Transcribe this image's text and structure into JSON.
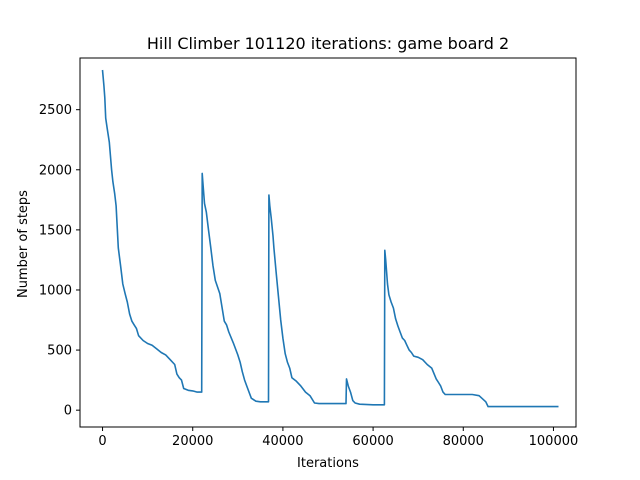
{
  "chart_data": {
    "type": "line",
    "title": "Hill Climber 101120 iterations: game board 2",
    "xlabel": "Iterations",
    "ylabel": "Number of steps",
    "xlim": [
      -5000,
      105000
    ],
    "ylim": [
      -140,
      2930
    ],
    "xticks": [
      0,
      20000,
      40000,
      60000,
      80000,
      100000
    ],
    "xtick_labels": [
      "0",
      "20000",
      "40000",
      "60000",
      "80000",
      "100000"
    ],
    "yticks": [
      0,
      500,
      1000,
      1500,
      2000,
      2500
    ],
    "ytick_labels": [
      "0",
      "500",
      "1000",
      "1500",
      "2000",
      "2500"
    ],
    "grid": false,
    "line_color": "#1f77b4",
    "series": [
      {
        "x": [
          0,
          300,
          500,
          700,
          1000,
          1500,
          2000,
          2300,
          2700,
          3000,
          3500,
          4000,
          4500,
          5000,
          5500,
          6000,
          6500,
          7000,
          7500,
          8000,
          9000,
          10000,
          11000,
          12000,
          13000,
          14000,
          15000,
          16000,
          16500,
          17000,
          17500,
          18000,
          19000,
          20000,
          21000,
          22000,
          22100,
          22300,
          22600,
          23000,
          23500,
          24000,
          24500,
          25000,
          26000,
          27000,
          27500,
          28000,
          29000,
          30000,
          30500,
          31000,
          31500,
          32000,
          33000,
          34000,
          35000,
          36000,
          36800,
          36900,
          37100,
          37400,
          37800,
          38000,
          38500,
          39000,
          39500,
          40000,
          40500,
          41000,
          41500,
          42000,
          43000,
          44000,
          45000,
          46000,
          47000,
          48000,
          50000,
          52000,
          54000,
          54100,
          54500,
          55000,
          55500,
          56000,
          57000,
          60000,
          62500,
          62600,
          62800,
          63000,
          63200,
          63500,
          64000,
          64500,
          65000,
          65500,
          66000,
          66500,
          67000,
          67500,
          68000,
          68500,
          69000,
          70000,
          71000,
          72000,
          73000,
          74000,
          74500,
          75000,
          75500,
          76000,
          78000,
          80000,
          82000,
          83500,
          85000,
          85500,
          87000,
          90000,
          95000,
          100000,
          101120
        ],
        "values": [
          2830,
          2700,
          2600,
          2430,
          2350,
          2230,
          2000,
          1900,
          1800,
          1700,
          1350,
          1200,
          1050,
          970,
          900,
          800,
          740,
          710,
          680,
          620,
          580,
          555,
          540,
          510,
          480,
          460,
          420,
          380,
          300,
          270,
          250,
          180,
          165,
          160,
          150,
          150,
          1970,
          1870,
          1720,
          1650,
          1500,
          1350,
          1200,
          1080,
          970,
          740,
          710,
          650,
          560,
          460,
          400,
          320,
          250,
          200,
          100,
          75,
          70,
          70,
          70,
          1790,
          1700,
          1600,
          1450,
          1350,
          1150,
          950,
          750,
          600,
          470,
          400,
          350,
          270,
          240,
          200,
          150,
          120,
          60,
          55,
          55,
          55,
          55,
          260,
          200,
          150,
          80,
          60,
          50,
          45,
          45,
          1330,
          1250,
          1150,
          1050,
          960,
          900,
          850,
          760,
          700,
          650,
          600,
          580,
          540,
          500,
          480,
          450,
          440,
          420,
          380,
          350,
          260,
          230,
          200,
          150,
          130,
          130,
          130,
          130,
          120,
          70,
          30,
          30,
          30,
          30,
          30,
          30
        ]
      }
    ]
  }
}
